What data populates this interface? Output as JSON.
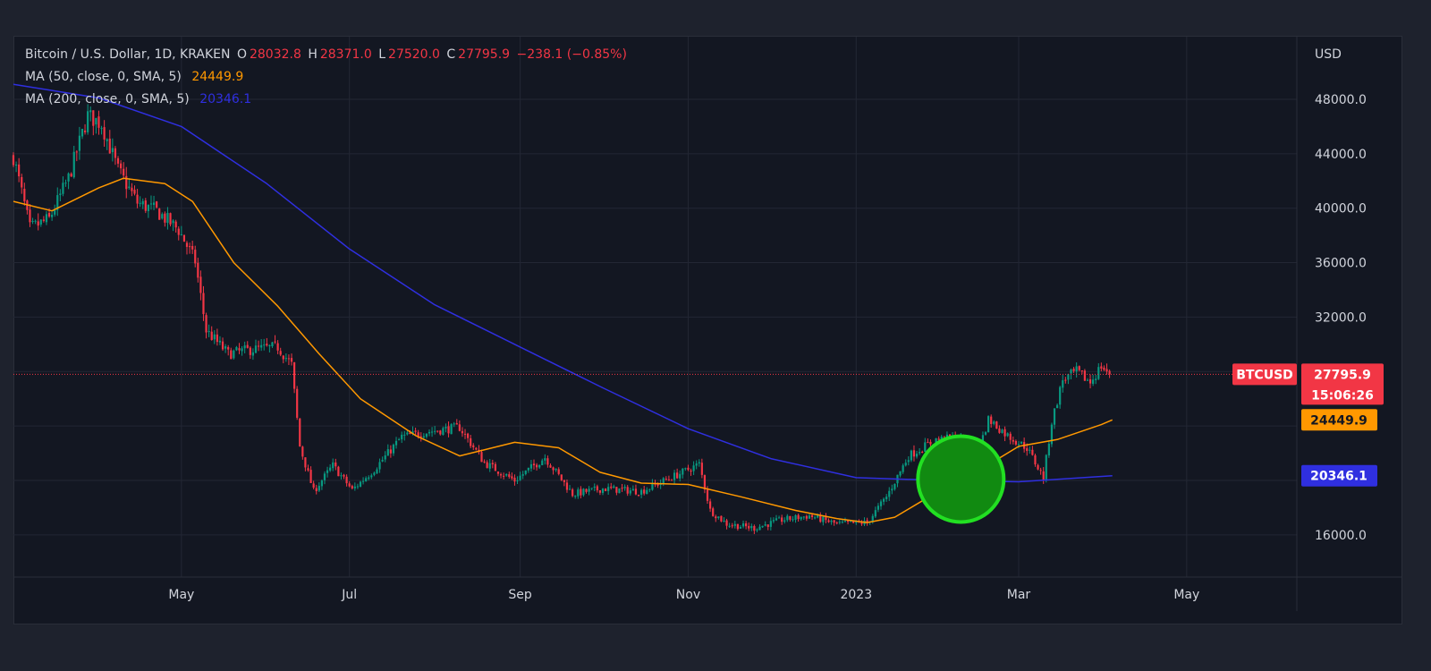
{
  "legend": {
    "symbol": "Bitcoin / U.S. Dollar, 1D, KRAKEN",
    "o_key": "O",
    "o": "28032.8",
    "h_key": "H",
    "h": "28371.0",
    "l_key": "L",
    "l": "27520.0",
    "c_key": "C",
    "c": "27795.9",
    "change": "−238.1 (−0.85%)",
    "ma50_label": "MA (50, close, 0, SMA, 5)",
    "ma50_value": "24449.9",
    "ma200_label": "MA (200, close, 0, SMA, 5)",
    "ma200_value": "20346.1"
  },
  "price_tag": {
    "symbol": "BTCUSD",
    "price": "27795.9",
    "countdown": "15:06:26"
  },
  "ma50_tag": "24449.9",
  "ma200_tag": "20346.1",
  "colors": {
    "up": "#089981",
    "down": "#f23645",
    "ma50": "#ff9800",
    "ma200": "#2f2fe0",
    "highlight_fill": "#118a11",
    "highlight_stroke": "#22e022"
  },
  "chart_data": {
    "type": "candlestick",
    "interval": "1D",
    "currency": "USD",
    "x_range": [
      "2022-03-01",
      "2023-06-10"
    ],
    "y_range": [
      12900,
      52600
    ],
    "y_ticks": [
      "16000.0",
      "20000.0",
      "24000.0",
      "28000.0",
      "32000.0",
      "36000.0",
      "40000.0",
      "44000.0",
      "48000.0"
    ],
    "x_ticks": [
      {
        "date": "2022-05-01",
        "label": "May"
      },
      {
        "date": "2022-07-01",
        "label": "Jul"
      },
      {
        "date": "2022-09-01",
        "label": "Sep"
      },
      {
        "date": "2022-11-01",
        "label": "Nov"
      },
      {
        "date": "2023-01-01",
        "label": "2023"
      },
      {
        "date": "2023-03-01",
        "label": "Mar"
      },
      {
        "date": "2023-05-01",
        "label": "May"
      }
    ],
    "last_close": 27795.9,
    "close_path": [
      [
        "2022-03-01",
        43800
      ],
      [
        "2022-03-07",
        38500
      ],
      [
        "2022-03-14",
        39200
      ],
      [
        "2022-03-21",
        42200
      ],
      [
        "2022-03-28",
        46800
      ],
      [
        "2022-04-02",
        46200
      ],
      [
        "2022-04-08",
        42800
      ],
      [
        "2022-04-15",
        40400
      ],
      [
        "2022-04-22",
        39800
      ],
      [
        "2022-04-30",
        38400
      ],
      [
        "2022-05-06",
        36100
      ],
      [
        "2022-05-10",
        31000
      ],
      [
        "2022-05-18",
        29300
      ],
      [
        "2022-05-26",
        29600
      ],
      [
        "2022-06-05",
        29800
      ],
      [
        "2022-06-10",
        28500
      ],
      [
        "2022-06-13",
        22500
      ],
      [
        "2022-06-18",
        19200
      ],
      [
        "2022-06-25",
        21100
      ],
      [
        "2022-07-02",
        19300
      ],
      [
        "2022-07-10",
        20800
      ],
      [
        "2022-07-20",
        23200
      ],
      [
        "2022-07-30",
        23600
      ],
      [
        "2022-08-10",
        23900
      ],
      [
        "2022-08-19",
        21300
      ],
      [
        "2022-08-30",
        20000
      ],
      [
        "2022-09-10",
        21700
      ],
      [
        "2022-09-20",
        19000
      ],
      [
        "2022-10-01",
        19400
      ],
      [
        "2022-10-15",
        19200
      ],
      [
        "2022-10-30",
        20600
      ],
      [
        "2022-11-05",
        21200
      ],
      [
        "2022-11-09",
        17800
      ],
      [
        "2022-11-15",
        16800
      ],
      [
        "2022-11-25",
        16500
      ],
      [
        "2022-12-05",
        17100
      ],
      [
        "2022-12-15",
        17400
      ],
      [
        "2022-12-25",
        16800
      ],
      [
        "2023-01-05",
        16900
      ],
      [
        "2023-01-12",
        18800
      ],
      [
        "2023-01-20",
        21800
      ],
      [
        "2023-01-30",
        23000
      ],
      [
        "2023-02-08",
        23100
      ],
      [
        "2023-02-14",
        21900
      ],
      [
        "2023-02-18",
        24500
      ],
      [
        "2023-02-25",
        23300
      ],
      [
        "2023-03-04",
        22400
      ],
      [
        "2023-03-10",
        20200
      ],
      [
        "2023-03-13",
        24300
      ],
      [
        "2023-03-17",
        27400
      ],
      [
        "2023-03-22",
        28000
      ],
      [
        "2023-03-27",
        27200
      ],
      [
        "2023-03-31",
        28400
      ],
      [
        "2023-04-03",
        27795.9
      ]
    ],
    "ma50": [
      [
        "2022-03-01",
        40500
      ],
      [
        "2022-03-15",
        39800
      ],
      [
        "2022-04-01",
        41500
      ],
      [
        "2022-04-10",
        42200
      ],
      [
        "2022-04-25",
        41800
      ],
      [
        "2022-05-05",
        40500
      ],
      [
        "2022-05-20",
        36000
      ],
      [
        "2022-06-05",
        32800
      ],
      [
        "2022-06-20",
        29300
      ],
      [
        "2022-07-05",
        26000
      ],
      [
        "2022-07-25",
        23300
      ],
      [
        "2022-08-10",
        21800
      ],
      [
        "2022-08-30",
        22800
      ],
      [
        "2022-09-15",
        22400
      ],
      [
        "2022-09-30",
        20600
      ],
      [
        "2022-10-15",
        19800
      ],
      [
        "2022-11-01",
        19700
      ],
      [
        "2022-11-20",
        18800
      ],
      [
        "2022-12-10",
        17800
      ],
      [
        "2022-12-25",
        17200
      ],
      [
        "2023-01-05",
        16900
      ],
      [
        "2023-01-15",
        17300
      ],
      [
        "2023-01-25",
        18500
      ],
      [
        "2023-02-05",
        19900
      ],
      [
        "2023-02-20",
        21400
      ],
      [
        "2023-03-01",
        22500
      ],
      [
        "2023-03-15",
        23000
      ],
      [
        "2023-03-31",
        24100
      ],
      [
        "2023-04-04",
        24449.9
      ]
    ],
    "ma200": [
      [
        "2022-03-01",
        49100
      ],
      [
        "2022-04-01",
        48100
      ],
      [
        "2022-05-01",
        46000
      ],
      [
        "2022-06-01",
        41800
      ],
      [
        "2022-07-01",
        37000
      ],
      [
        "2022-08-01",
        32900
      ],
      [
        "2022-09-01",
        29800
      ],
      [
        "2022-10-01",
        26800
      ],
      [
        "2022-11-01",
        23800
      ],
      [
        "2022-12-01",
        21600
      ],
      [
        "2023-01-01",
        20200
      ],
      [
        "2023-02-01",
        20000
      ],
      [
        "2023-03-01",
        19900
      ],
      [
        "2023-04-04",
        20346.1
      ]
    ],
    "annotation": {
      "shape": "circle",
      "date": "2023-02-08",
      "price": 20100
    }
  }
}
